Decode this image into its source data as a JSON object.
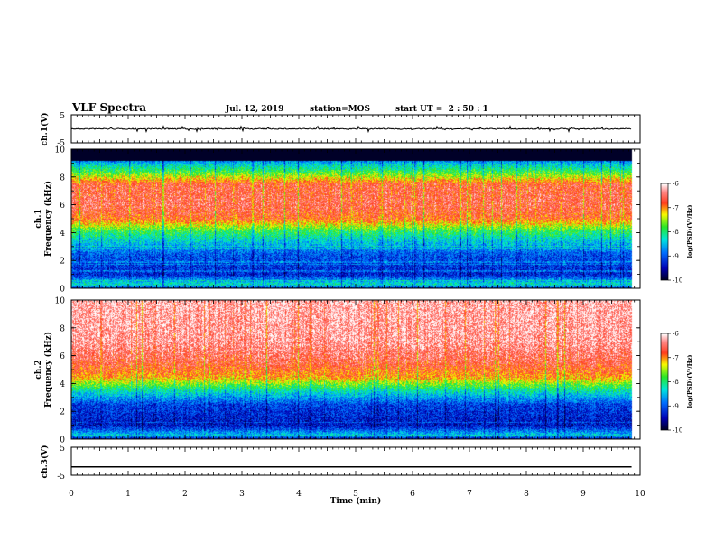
{
  "header": {
    "title": "VLF Spectra",
    "date": "Jul. 12, 2019",
    "station": "station=MOS",
    "start": "start UT =  2 : 50 : 1"
  },
  "chart_data": [
    {
      "type": "line",
      "name": "ch1-voltage",
      "ylabel": "ch.1(V)",
      "ylim": [
        -5,
        5
      ],
      "y_ticks": [
        "5",
        "-5"
      ],
      "x": [
        0,
        9.85
      ],
      "y": [
        0,
        0
      ],
      "color": "#000000",
      "noise": "small spikes"
    },
    {
      "type": "heatmap",
      "name": "ch1-spectrogram",
      "ylabel": "ch.1",
      "ylabel2": "Frequency (kHz)",
      "ylim": [
        0,
        10
      ],
      "y_ticks": [
        "0",
        "2",
        "4",
        "6",
        "8",
        "10"
      ],
      "xlim": [
        0,
        10
      ],
      "data_end_min": 9.85,
      "blank_band_khz": [
        9.2,
        10
      ],
      "intensity_profile": [
        {
          "f": 0.0,
          "v": 0.1
        },
        {
          "f": 0.3,
          "v": 0.45
        },
        {
          "f": 1.0,
          "v": 0.18
        },
        {
          "f": 2.5,
          "v": 0.25
        },
        {
          "f": 3.5,
          "v": 0.42
        },
        {
          "f": 4.2,
          "v": 0.55
        },
        {
          "f": 5.0,
          "v": 0.8
        },
        {
          "f": 6.0,
          "v": 0.86
        },
        {
          "f": 7.5,
          "v": 0.84
        },
        {
          "f": 8.2,
          "v": 0.6
        },
        {
          "f": 9.0,
          "v": 0.38
        },
        {
          "f": 9.2,
          "v": 0.3
        }
      ],
      "colorbar": {
        "label": "log(PSD)(V²/Hz)",
        "ticks": [
          "-6",
          "-7",
          "-8",
          "-9",
          "-10"
        ],
        "range": [
          -10,
          -6
        ]
      }
    },
    {
      "type": "heatmap",
      "name": "ch2-spectrogram",
      "ylabel": "ch.2",
      "ylabel2": "Frequency (kHz)",
      "ylim": [
        0,
        10
      ],
      "y_ticks": [
        "0",
        "2",
        "4",
        "6",
        "8",
        "10"
      ],
      "xlim": [
        0,
        10
      ],
      "data_end_min": 9.85,
      "intensity_profile": [
        {
          "f": 0.0,
          "v": 0.08
        },
        {
          "f": 0.3,
          "v": 0.4
        },
        {
          "f": 1.0,
          "v": 0.15
        },
        {
          "f": 2.5,
          "v": 0.22
        },
        {
          "f": 3.5,
          "v": 0.45
        },
        {
          "f": 4.5,
          "v": 0.75
        },
        {
          "f": 5.5,
          "v": 0.85
        },
        {
          "f": 7.0,
          "v": 0.93
        },
        {
          "f": 10.0,
          "v": 0.95
        }
      ],
      "colorbar": {
        "label": "log(PSD)(V²/Hz)",
        "ticks": [
          "-6",
          "-7",
          "-8",
          "-9",
          "-10"
        ],
        "range": [
          -10,
          -6
        ]
      }
    },
    {
      "type": "line",
      "name": "ch3-voltage",
      "ylabel": "ch.3(V)",
      "ylim": [
        -5,
        5
      ],
      "y_ticks": [
        "5",
        "-5"
      ],
      "x": [
        0,
        9.85
      ],
      "y": [
        -2,
        -2
      ],
      "color": "#000000"
    }
  ],
  "x_axis": {
    "label": "Time (min)",
    "ticks": [
      "0",
      "1",
      "2",
      "3",
      "4",
      "5",
      "6",
      "7",
      "8",
      "9",
      "10"
    ],
    "range": [
      0,
      10
    ]
  },
  "colors": {
    "background": "#ffffff",
    "axes": "#000000",
    "blank_band": "#000000"
  }
}
